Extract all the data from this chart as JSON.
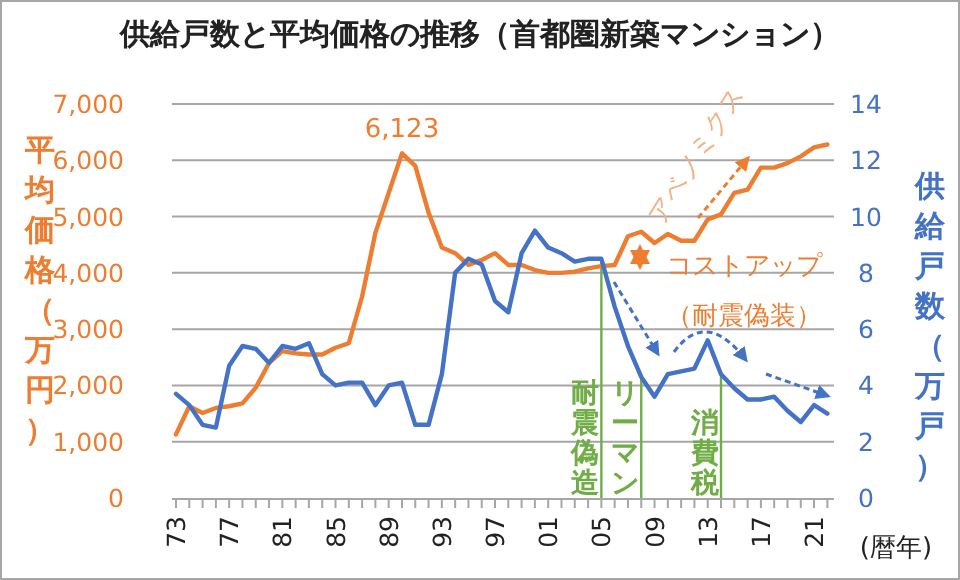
{
  "chart_data": {
    "type": "line",
    "title": "供給戸数と平均価格の推移（首都圏新築マンション）",
    "xlabel": "(暦年)",
    "ylabel": "平均価格（万円）",
    "y2label": "供給戸数（万戸）",
    "x": [
      1973,
      1974,
      1975,
      1976,
      1977,
      1978,
      1979,
      1980,
      1981,
      1982,
      1983,
      1984,
      1985,
      1986,
      1987,
      1988,
      1989,
      1990,
      1991,
      1992,
      1993,
      1994,
      1995,
      1996,
      1997,
      1998,
      1999,
      2000,
      2001,
      2002,
      2003,
      2004,
      2005,
      2006,
      2007,
      2008,
      2009,
      2010,
      2011,
      2012,
      2013,
      2014,
      2015,
      2016,
      2017,
      2018,
      2019,
      2020,
      2021,
      2022
    ],
    "series": [
      {
        "color": "#ed7d31",
        "values": [
          1130,
          1630,
          1510,
          1600,
          1630,
          1680,
          1960,
          2400,
          2610,
          2570,
          2550,
          2550,
          2670,
          2750,
          3580,
          4710,
          5420,
          6123,
          5900,
          5070,
          4450,
          4350,
          4140,
          4230,
          4350,
          4140,
          4140,
          4050,
          4000,
          4000,
          4020,
          4080,
          4120,
          4140,
          4650,
          4730,
          4530,
          4690,
          4570,
          4570,
          4950,
          5040,
          5420,
          5480,
          5870,
          5870,
          5950,
          6070,
          6230,
          6280
        ]
      },
      {
        "color": "#4472c4",
        "axis": "y2",
        "values": [
          3.7,
          3.3,
          2.6,
          2.5,
          4.7,
          5.4,
          5.3,
          4.8,
          5.4,
          5.3,
          5.5,
          4.4,
          4.0,
          4.1,
          4.1,
          3.3,
          4.0,
          4.1,
          2.6,
          2.6,
          4.4,
          8.0,
          8.5,
          8.3,
          7.0,
          6.6,
          8.7,
          9.5,
          8.9,
          8.7,
          8.4,
          8.5,
          8.5,
          6.8,
          5.4,
          4.3,
          3.6,
          4.4,
          4.5,
          4.6,
          5.6,
          4.4,
          3.9,
          3.5,
          3.5,
          3.6,
          3.1,
          2.7,
          3.3,
          3.0
        ]
      }
    ],
    "xlim": [
      1972.7,
      2022.5
    ],
    "xticks": [
      {
        "value": 1973,
        "label": "73"
      },
      {
        "value": 1974,
        "label": null
      },
      {
        "value": 1975,
        "label": null
      },
      {
        "value": 1976,
        "label": null
      },
      {
        "value": 1977,
        "label": "77"
      },
      {
        "value": 1978,
        "label": null
      },
      {
        "value": 1979,
        "label": null
      },
      {
        "value": 1980,
        "label": null
      },
      {
        "value": 1981,
        "label": "81"
      },
      {
        "value": 1982,
        "label": null
      },
      {
        "value": 1983,
        "label": null
      },
      {
        "value": 1984,
        "label": null
      },
      {
        "value": 1985,
        "label": "85"
      },
      {
        "value": 1986,
        "label": null
      },
      {
        "value": 1987,
        "label": null
      },
      {
        "value": 1988,
        "label": null
      },
      {
        "value": 1989,
        "label": "89"
      },
      {
        "value": 1990,
        "label": null
      },
      {
        "value": 1991,
        "label": null
      },
      {
        "value": 1992,
        "label": null
      },
      {
        "value": 1993,
        "label": "93"
      },
      {
        "value": 1994,
        "label": null
      },
      {
        "value": 1995,
        "label": null
      },
      {
        "value": 1996,
        "label": null
      },
      {
        "value": 1997,
        "label": "97"
      },
      {
        "value": 1998,
        "label": null
      },
      {
        "value": 1999,
        "label": null
      },
      {
        "value": 2000,
        "label": null
      },
      {
        "value": 2001,
        "label": "01"
      },
      {
        "value": 2002,
        "label": null
      },
      {
        "value": 2003,
        "label": null
      },
      {
        "value": 2004,
        "label": null
      },
      {
        "value": 2005,
        "label": "05"
      },
      {
        "value": 2006,
        "label": null
      },
      {
        "value": 2007,
        "label": null
      },
      {
        "value": 2008,
        "label": null
      },
      {
        "value": 2009,
        "label": "09"
      },
      {
        "value": 2010,
        "label": null
      },
      {
        "value": 2011,
        "label": null
      },
      {
        "value": 2012,
        "label": null
      },
      {
        "value": 2013,
        "label": "13"
      },
      {
        "value": 2014,
        "label": null
      },
      {
        "value": 2015,
        "label": null
      },
      {
        "value": 2016,
        "label": null
      },
      {
        "value": 2017,
        "label": "17"
      },
      {
        "value": 2018,
        "label": null
      },
      {
        "value": 2019,
        "label": null
      },
      {
        "value": 2020,
        "label": null
      },
      {
        "value": 2021,
        "label": "21"
      },
      {
        "value": 2022,
        "label": null
      }
    ],
    "ylim": [
      0,
      7000
    ],
    "yticks": [
      0,
      {
        "value": 1000,
        "label": "1,000"
      },
      {
        "value": 2000,
        "label": "2,000"
      },
      {
        "value": 3000,
        "label": "3,000"
      },
      {
        "value": 4000,
        "label": "4,000"
      },
      {
        "value": 5000,
        "label": "5,000"
      },
      {
        "value": 6000,
        "label": "6,000"
      },
      {
        "value": 7000,
        "label": "7,000"
      }
    ],
    "y2lim": [
      0,
      14
    ],
    "y2ticks": [
      0,
      2,
      4,
      6,
      8,
      10,
      12,
      14
    ],
    "grid": "y",
    "legend": false,
    "marker": "none",
    "line_style": "solid",
    "ref_lines": [
      {
        "axis": "x",
        "value": 2005,
        "label": "耐震偽造",
        "color": "#70ad47"
      },
      {
        "axis": "x",
        "value": 2008,
        "label": "リーマン",
        "color": "#70ad47"
      },
      {
        "axis": "x",
        "value": 2014,
        "label": "消費税",
        "color": "#70ad47"
      }
    ],
    "annotations": [
      {
        "text": "6,123",
        "x": 1990,
        "y": 6123
      },
      "アベノミクス",
      "コストアップ",
      "（耐震偽装）"
    ]
  }
}
